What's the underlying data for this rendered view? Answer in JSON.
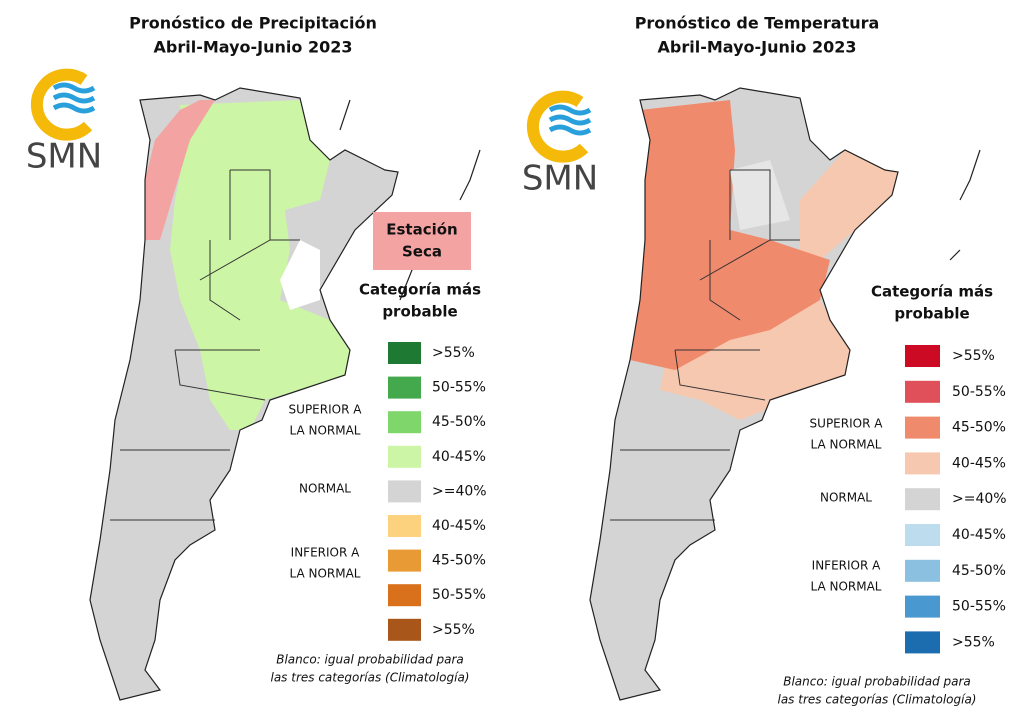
{
  "panels": [
    {
      "title": [
        "Pronóstico de Precipitación",
        "Abril-Mayo-Junio 2023"
      ],
      "logo": "SMN",
      "badge": [
        "Estación",
        "Seca"
      ],
      "legend": {
        "title": [
          "Categoría más",
          "probable"
        ],
        "groups": [
          [
            "SUPERIOR A",
            "LA NORMAL"
          ],
          [
            "NORMAL"
          ],
          [
            "INFERIOR A",
            "LA NORMAL"
          ]
        ],
        "items": [
          {
            "label": ">55%",
            "color": "#1e7a32"
          },
          {
            "label": "50-55%",
            "color": "#44a84c"
          },
          {
            "label": "45-50%",
            "color": "#7fd66a"
          },
          {
            "label": "40-45%",
            "color": "#ccf5a6"
          },
          {
            "label": ">=40%",
            "color": "#d4d4d4"
          },
          {
            "label": "40-45%",
            "color": "#fcd27e"
          },
          {
            "label": "45-50%",
            "color": "#e89a34"
          },
          {
            "label": "50-55%",
            "color": "#d8701c"
          },
          {
            "label": ">55%",
            "color": "#a8561a"
          }
        ]
      },
      "note": [
        "Blanco: igual probabilidad para",
        "las tres categorías (Climatología)"
      ]
    },
    {
      "title": [
        "Pronóstico de Temperatura",
        "Abril-Mayo-Junio 2023"
      ],
      "logo": "SMN",
      "legend": {
        "title": [
          "Categoría más",
          "probable"
        ],
        "groups": [
          [
            "SUPERIOR A",
            "LA NORMAL"
          ],
          [
            "NORMAL"
          ],
          [
            "INFERIOR A",
            "LA NORMAL"
          ]
        ],
        "items": [
          {
            "label": ">55%",
            "color": "#cc0a24"
          },
          {
            "label": "50-55%",
            "color": "#e0505a"
          },
          {
            "label": "45-50%",
            "color": "#f08a6c"
          },
          {
            "label": "40-45%",
            "color": "#f7c8b0"
          },
          {
            "label": ">=40%",
            "color": "#d4d4d4"
          },
          {
            "label": "40-45%",
            "color": "#bddcee"
          },
          {
            "label": "45-50%",
            "color": "#8bc0e0"
          },
          {
            "label": "50-55%",
            "color": "#4a98d0"
          },
          {
            "label": ">55%",
            "color": "#1c6cb0"
          }
        ]
      },
      "note": [
        "Blanco: igual probabilidad para",
        "las tres categorías (Climatología)"
      ]
    }
  ]
}
